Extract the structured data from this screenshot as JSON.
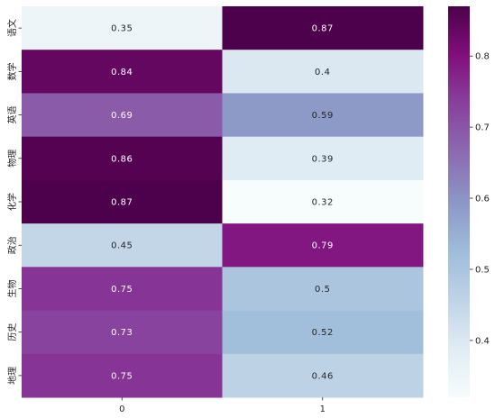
{
  "chart_data": {
    "type": "heatmap",
    "title": "",
    "xlabel": "",
    "ylabel": "",
    "x_categories": [
      "0",
      "1"
    ],
    "y_categories": [
      "语文",
      "数学",
      "英语",
      "物理",
      "化学",
      "政治",
      "生物",
      "历史",
      "地理"
    ],
    "values": [
      [
        0.35,
        0.87
      ],
      [
        0.84,
        0.4
      ],
      [
        0.69,
        0.59
      ],
      [
        0.86,
        0.39
      ],
      [
        0.87,
        0.32
      ],
      [
        0.45,
        0.79
      ],
      [
        0.75,
        0.5
      ],
      [
        0.73,
        0.52
      ],
      [
        0.75,
        0.46
      ]
    ],
    "cell_labels": [
      [
        "0.35",
        "0.87"
      ],
      [
        "0.84",
        "0.4"
      ],
      [
        "0.69",
        "0.59"
      ],
      [
        "0.86",
        "0.39"
      ],
      [
        "0.87",
        "0.32"
      ],
      [
        "0.45",
        "0.79"
      ],
      [
        "0.75",
        "0.5"
      ],
      [
        "0.73",
        "0.52"
      ],
      [
        "0.75",
        "0.46"
      ]
    ],
    "colormap": "BuPu",
    "vmin": 0.32,
    "vmax": 0.87,
    "colorbar": {
      "ticks": [
        0.4,
        0.5,
        0.6,
        0.7,
        0.8
      ],
      "tick_labels": [
        "0.4",
        "0.5",
        "0.6",
        "0.7",
        "0.8"
      ]
    },
    "annotations": true,
    "grid": false,
    "legend": "colorbar-right"
  }
}
